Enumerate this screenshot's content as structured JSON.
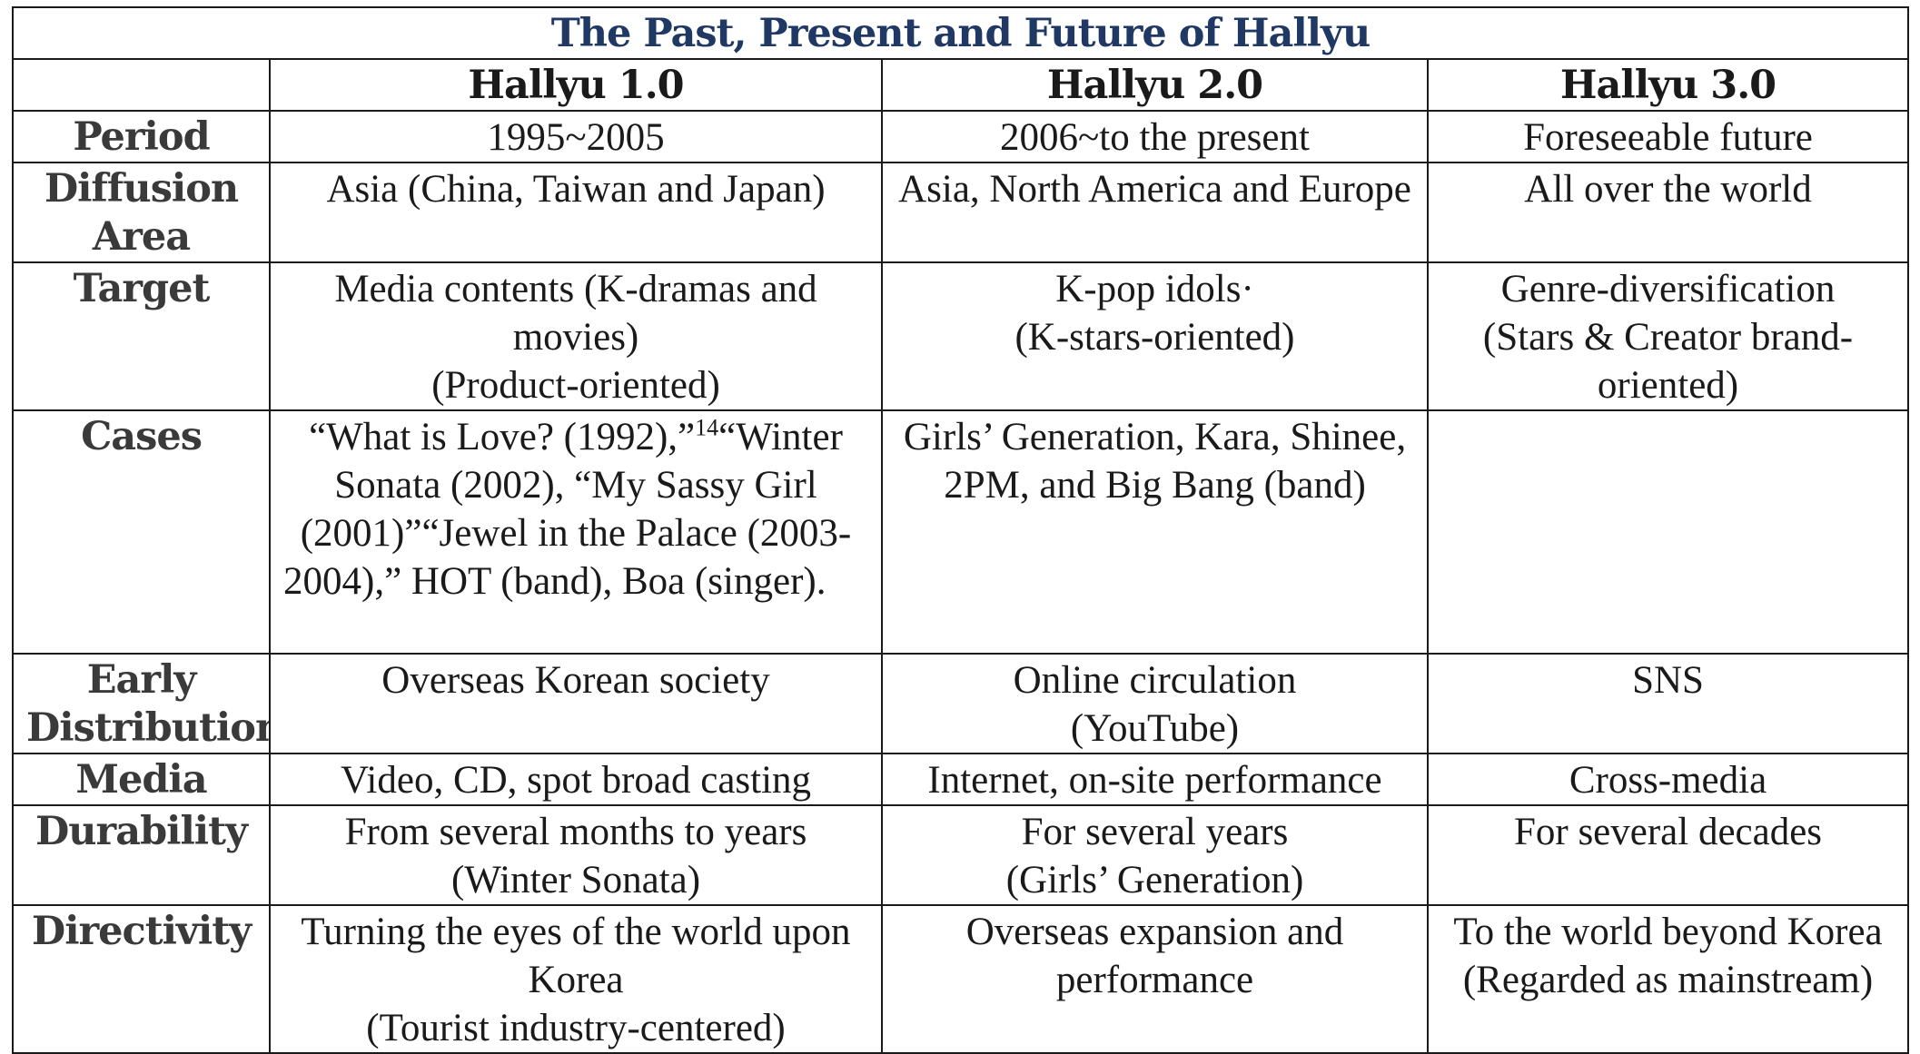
{
  "title": "The Past, Present and Future of Hallyu",
  "headers": [
    "",
    "Hallyu 1.0",
    "Hallyu 2.0",
    "Hallyu 3.0"
  ],
  "colors": {
    "title": "#1f3864",
    "border": "#1a1a1a",
    "label_text": "#3a3a3a"
  },
  "rows": {
    "period": {
      "label": "Period",
      "h1": "1995~2005",
      "h2": "2006~to the present",
      "h3": "Foreseeable future"
    },
    "diffusion": {
      "label": "Diffusion Area",
      "h1": "Asia (China, Taiwan and Japan)",
      "h2": "Asia, North America and Europe",
      "h3": "All over the world"
    },
    "target": {
      "label": "Target",
      "h1": "Media contents (K-dramas and movies)",
      "h1_sub": "(Product-oriented)",
      "h2": "K-pop idols·",
      "h2_sub": "(K-stars-oriented)",
      "h3": "Genre-diversification",
      "h3_sub": "(Stars & Creator brand-oriented)"
    },
    "cases": {
      "label": "Cases",
      "h1_part1": "“What is Love? (1992),”",
      "h1_note": "14",
      "h1_part2": "“Winter Sonata (2002), “My Sassy Girl (2001)”“Jewel in the Palace (2003-2004),” HOT (band), Boa (singer).",
      "h2": "Girls’ Generation, Kara, Shinee, 2PM, and Big Bang (band)",
      "h3": ""
    },
    "early": {
      "label": "Early Distribution",
      "h1": "Overseas Korean society",
      "h2": "Online circulation",
      "h2_sub": "(YouTube)",
      "h3": "SNS"
    },
    "media": {
      "label": "Media",
      "h1": "Video, CD, spot broad casting",
      "h2": "Internet, on-site performance",
      "h3": "Cross-media"
    },
    "durability": {
      "label": "Durability",
      "h1": "From several months to years",
      "h1_sub": "(Winter Sonata)",
      "h2": "For several years",
      "h2_sub": "(Girls’ Generation)",
      "h3": "For several decades"
    },
    "directivity": {
      "label": "Directivity",
      "h1": "Turning the eyes of the world upon Korea",
      "h1_sub": "(Tourist industry-centered)",
      "h2": "Overseas expansion and performance",
      "h3": "To the world beyond Korea (Regarded as mainstream)"
    }
  }
}
